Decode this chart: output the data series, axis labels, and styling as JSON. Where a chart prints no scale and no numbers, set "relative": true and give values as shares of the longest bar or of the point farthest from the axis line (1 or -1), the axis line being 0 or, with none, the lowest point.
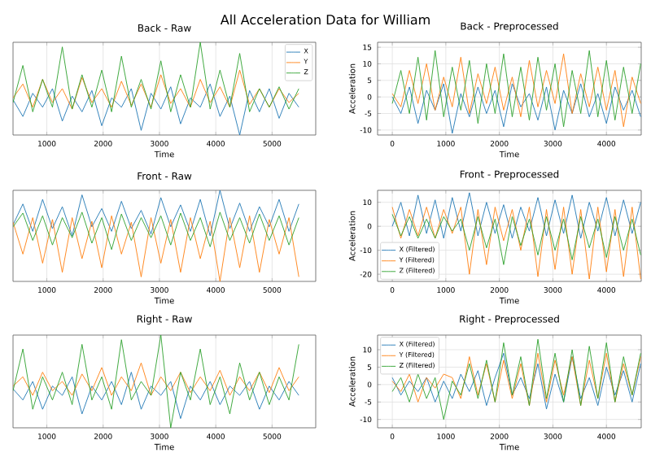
{
  "chart_data": [
    {
      "type": "line",
      "title": "Back - Raw",
      "xlabel": "Time",
      "relative": true,
      "grid": "x",
      "legend": "top right",
      "annotations": [
        "All Acceleration Data for William"
      ],
      "xlim": [
        400,
        5775
      ],
      "xticks": [
        1000,
        2000,
        3000,
        4000,
        5000
      ],
      "x": [
        400,
        575,
        750,
        925,
        1100,
        1275,
        1450,
        1625,
        1800,
        1975,
        2150,
        2325,
        2500,
        2675,
        2850,
        3025,
        3200,
        3375,
        3550,
        3725,
        3900,
        4075,
        4250,
        4425,
        4600,
        4775,
        4950,
        5125,
        5300,
        5475
      ],
      "series": [
        {
          "name": "X",
          "color": "#1f77b4",
          "values": [
            0.38,
            0.2,
            0.45,
            0.3,
            0.5,
            0.15,
            0.42,
            0.25,
            0.48,
            0.1,
            0.4,
            0.3,
            0.5,
            0.05,
            0.45,
            0.28,
            0.52,
            0.12,
            0.4,
            0.3,
            0.55,
            0.2,
            0.42,
            0.0,
            0.48,
            0.25,
            0.5,
            0.18,
            0.45,
            0.3
          ]
        },
        {
          "name": "Y",
          "color": "#ff7f0e",
          "values": [
            0.4,
            0.55,
            0.3,
            0.6,
            0.35,
            0.5,
            0.28,
            0.62,
            0.35,
            0.5,
            0.3,
            0.58,
            0.32,
            0.55,
            0.3,
            0.65,
            0.34,
            0.5,
            0.3,
            0.6,
            0.35,
            0.52,
            0.3,
            0.7,
            0.33,
            0.5,
            0.3,
            0.5,
            0.35,
            0.45
          ]
        },
        {
          "name": "Z",
          "color": "#2ca02c",
          "values": [
            0.35,
            0.75,
            0.25,
            0.6,
            0.3,
            0.95,
            0.28,
            0.65,
            0.3,
            0.7,
            0.25,
            0.85,
            0.3,
            0.6,
            0.28,
            0.8,
            0.25,
            0.65,
            0.3,
            1.0,
            0.28,
            0.7,
            0.3,
            0.88,
            0.25,
            0.5,
            0.3,
            0.52,
            0.28,
            0.5
          ]
        }
      ]
    },
    {
      "type": "line",
      "title": "Back - Preprocessed",
      "xlabel": "Time",
      "ylabel": "Acceleration",
      "grid": true,
      "xlim": [
        -275,
        4650
      ],
      "xticks": [
        0,
        1000,
        2000,
        3000,
        4000
      ],
      "ylim": [
        -11.5,
        16.5
      ],
      "yticks": [
        -10,
        -5,
        0,
        5,
        10,
        15
      ],
      "x": [
        0,
        160,
        320,
        480,
        640,
        800,
        960,
        1120,
        1280,
        1440,
        1600,
        1760,
        1920,
        2080,
        2240,
        2400,
        2560,
        2720,
        2880,
        3040,
        3200,
        3360,
        3520,
        3680,
        3840,
        4000,
        4160,
        4320,
        4480,
        4640
      ],
      "series": [
        {
          "color": "#1f77b4",
          "values": [
            0,
            -5,
            3,
            -8,
            2,
            -4,
            4,
            -11,
            1,
            -6,
            3,
            -5,
            2,
            -9,
            4,
            -3,
            1,
            -7,
            3,
            -10,
            2,
            -5,
            4,
            -6,
            1,
            -8,
            3,
            -4,
            2,
            -6
          ]
        },
        {
          "color": "#ff7f0e",
          "values": [
            1,
            -3,
            8,
            -2,
            10,
            -4,
            6,
            -3,
            12,
            -5,
            7,
            -2,
            9,
            -4,
            6,
            -6,
            11,
            -3,
            8,
            -2,
            13,
            -5,
            7,
            -3,
            9,
            -4,
            8,
            -9,
            6,
            -2
          ]
        },
        {
          "color": "#2ca02c",
          "values": [
            -2,
            8,
            -5,
            12,
            -7,
            14,
            -6,
            9,
            -4,
            11,
            -8,
            10,
            -5,
            13,
            -6,
            9,
            -7,
            12,
            -4,
            10,
            -9,
            8,
            -5,
            14,
            -6,
            11,
            -7,
            9,
            -5,
            10
          ]
        }
      ]
    },
    {
      "type": "line",
      "title": "Front - Raw",
      "xlabel": "Time",
      "relative": true,
      "grid": "x",
      "xlim": [
        400,
        5775
      ],
      "xticks": [
        1000,
        2000,
        3000,
        4000,
        5000
      ],
      "x": [
        400,
        575,
        750,
        925,
        1100,
        1275,
        1450,
        1625,
        1800,
        1975,
        2150,
        2325,
        2500,
        2675,
        2850,
        3025,
        3200,
        3375,
        3550,
        3725,
        3900,
        4075,
        4250,
        4425,
        4600,
        4775,
        4950,
        5125,
        5300,
        5475
      ],
      "series": [
        {
          "color": "#1f77b4",
          "values": [
            0.62,
            0.85,
            0.55,
            0.9,
            0.58,
            0.82,
            0.5,
            0.95,
            0.6,
            0.8,
            0.55,
            0.88,
            0.58,
            0.78,
            0.52,
            0.92,
            0.6,
            0.84,
            0.55,
            0.9,
            0.5,
            1.0,
            0.58,
            0.86,
            0.55,
            0.82,
            0.6,
            0.9,
            0.55,
            0.85
          ]
        },
        {
          "color": "#ff7f0e",
          "values": [
            0.65,
            0.3,
            0.7,
            0.2,
            0.68,
            0.1,
            0.7,
            0.25,
            0.66,
            0.15,
            0.72,
            0.3,
            0.65,
            0.05,
            0.7,
            0.2,
            0.68,
            0.1,
            0.7,
            0.25,
            0.66,
            0.0,
            0.7,
            0.15,
            0.72,
            0.1,
            0.68,
            0.3,
            0.7,
            0.05
          ]
        },
        {
          "color": "#2ca02c",
          "values": [
            0.6,
            0.75,
            0.45,
            0.72,
            0.4,
            0.7,
            0.48,
            0.76,
            0.42,
            0.7,
            0.35,
            0.74,
            0.45,
            0.7,
            0.48,
            0.72,
            0.4,
            0.75,
            0.45,
            0.7,
            0.38,
            0.76,
            0.45,
            0.7,
            0.42,
            0.74,
            0.45,
            0.72,
            0.4,
            0.7
          ]
        }
      ]
    },
    {
      "type": "line",
      "title": "Front - Preprocessed",
      "xlabel": "Time",
      "ylabel": "Acceleration",
      "grid": true,
      "legend": "bottom left",
      "xlim": [
        -275,
        4650
      ],
      "xticks": [
        0,
        1000,
        2000,
        3000,
        4000
      ],
      "ylim": [
        -23,
        15
      ],
      "yticks": [
        -20,
        -10,
        0,
        10
      ],
      "x": [
        0,
        160,
        320,
        480,
        640,
        800,
        960,
        1120,
        1280,
        1440,
        1600,
        1760,
        1920,
        2080,
        2240,
        2400,
        2560,
        2720,
        2880,
        3040,
        3200,
        3360,
        3520,
        3680,
        3840,
        4000,
        4160,
        4320,
        4480,
        4640
      ],
      "series": [
        {
          "name": "X (Filtered)",
          "color": "#1f77b4",
          "values": [
            0,
            10,
            -4,
            13,
            -3,
            11,
            -5,
            12,
            -2,
            14,
            -4,
            10,
            -3,
            9,
            -5,
            8,
            -2,
            12,
            -4,
            11,
            -3,
            13,
            -5,
            10,
            -2,
            12,
            -4,
            11,
            -3,
            10
          ]
        },
        {
          "name": "Y (Filtered)",
          "color": "#ff7f0e",
          "values": [
            8,
            -5,
            7,
            -4,
            8,
            -5,
            7,
            -3,
            8,
            -20,
            7,
            -16,
            8,
            -6,
            7,
            -10,
            8,
            -21,
            7,
            -18,
            8,
            -20,
            7,
            -22,
            8,
            -19,
            7,
            -21,
            8,
            -22
          ]
        },
        {
          "name": "Z (Filtered)",
          "color": "#2ca02c",
          "values": [
            5,
            -4,
            4,
            -5,
            3,
            -5,
            4,
            -2,
            3,
            -10,
            4,
            -9,
            3,
            -16,
            4,
            -8,
            3,
            -12,
            4,
            -10,
            3,
            -14,
            4,
            -9,
            3,
            -13,
            4,
            -10,
            3,
            -12
          ]
        }
      ]
    },
    {
      "type": "line",
      "title": "Right - Raw",
      "xlabel": "Time",
      "relative": true,
      "grid": "x",
      "xlim": [
        400,
        5775
      ],
      "xticks": [
        1000,
        2000,
        3000,
        4000,
        5000
      ],
      "x": [
        400,
        575,
        750,
        925,
        1100,
        1275,
        1450,
        1625,
        1800,
        1975,
        2150,
        2325,
        2500,
        2675,
        2850,
        3025,
        3200,
        3375,
        3550,
        3725,
        3900,
        4075,
        4250,
        4425,
        4600,
        4775,
        4950,
        5125,
        5300,
        5475
      ],
      "series": [
        {
          "color": "#1f77b4",
          "values": [
            0.42,
            0.3,
            0.5,
            0.2,
            0.45,
            0.35,
            0.55,
            0.15,
            0.45,
            0.3,
            0.5,
            0.25,
            0.6,
            0.2,
            0.45,
            0.35,
            0.5,
            0.1,
            0.45,
            0.3,
            0.5,
            0.25,
            0.45,
            0.35,
            0.5,
            0.2,
            0.45,
            0.3,
            0.5,
            0.35
          ]
        },
        {
          "color": "#ff7f0e",
          "values": [
            0.45,
            0.55,
            0.35,
            0.6,
            0.4,
            0.5,
            0.35,
            0.58,
            0.4,
            0.65,
            0.35,
            0.55,
            0.4,
            0.7,
            0.35,
            0.55,
            0.4,
            0.6,
            0.38,
            0.55,
            0.4,
            0.62,
            0.35,
            0.55,
            0.4,
            0.6,
            0.38,
            0.65,
            0.4,
            0.55
          ]
        },
        {
          "color": "#2ca02c",
          "values": [
            0.4,
            0.85,
            0.2,
            0.55,
            0.3,
            0.6,
            0.25,
            0.9,
            0.3,
            0.55,
            0.2,
            0.95,
            0.3,
            0.5,
            0.35,
            1.0,
            0.0,
            0.6,
            0.3,
            0.85,
            0.25,
            0.55,
            0.15,
            0.7,
            0.3,
            0.6,
            0.25,
            0.55,
            0.3,
            0.9
          ]
        }
      ]
    },
    {
      "type": "line",
      "title": "Right - Preprocessed",
      "xlabel": "Time",
      "ylabel": "Acceleration",
      "grid": true,
      "legend": "top left",
      "xlim": [
        -275,
        4650
      ],
      "xticks": [
        0,
        1000,
        2000,
        3000,
        4000
      ],
      "ylim": [
        -12.4,
        14.2
      ],
      "yticks": [
        -10,
        -5,
        0,
        5,
        10
      ],
      "x": [
        0,
        160,
        320,
        480,
        640,
        800,
        960,
        1120,
        1280,
        1440,
        1600,
        1760,
        1920,
        2080,
        2240,
        2400,
        2560,
        2720,
        2880,
        3040,
        3200,
        3360,
        3520,
        3680,
        3840,
        4000,
        4160,
        4320,
        4480,
        4640
      ],
      "series": [
        {
          "name": "X (Filtered)",
          "color": "#1f77b4",
          "values": [
            2,
            -3,
            1,
            -2,
            2,
            -5,
            1,
            -4,
            3,
            -2,
            4,
            -6,
            2,
            9,
            -3,
            2,
            -4,
            6,
            -7,
            3,
            -5,
            8,
            -4,
            2,
            -6,
            5,
            -3,
            4,
            -5,
            6
          ]
        },
        {
          "name": "Y (Filtered)",
          "color": "#ff7f0e",
          "values": [
            1,
            -2,
            3,
            -5,
            2,
            -1,
            3,
            2,
            -4,
            8,
            -3,
            6,
            -5,
            7,
            -4,
            6,
            -6,
            9,
            -5,
            7,
            -3,
            8,
            -6,
            7,
            -4,
            9,
            -5,
            6,
            -3,
            8
          ]
        },
        {
          "name": "Z (Filtered)",
          "color": "#2ca02c",
          "values": [
            -2,
            2,
            -5,
            3,
            -4,
            2,
            -10,
            1,
            -3,
            6,
            -4,
            7,
            -5,
            12,
            -3,
            8,
            -6,
            13,
            -4,
            9,
            -5,
            10,
            -6,
            11,
            -4,
            12,
            -5,
            8,
            -3,
            9
          ]
        }
      ]
    }
  ]
}
